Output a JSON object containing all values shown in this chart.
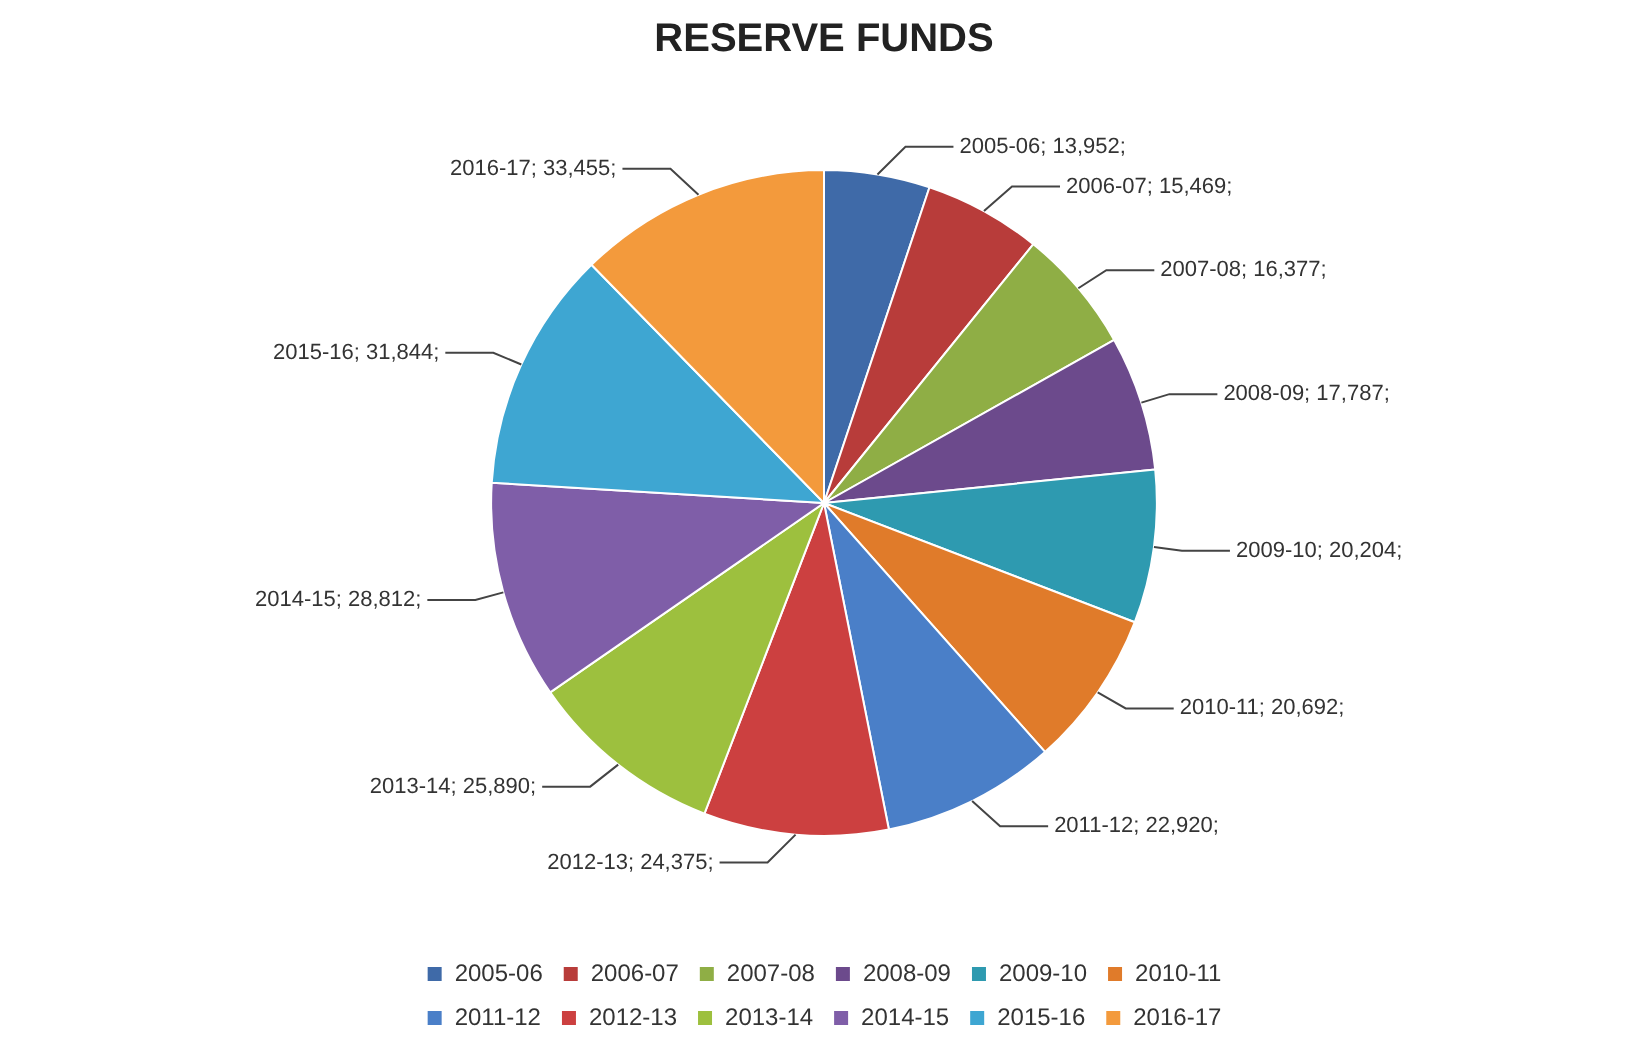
{
  "chart_data": {
    "type": "pie",
    "title": "RESERVE FUNDS",
    "categories": [
      "2005-06",
      "2006-07",
      "2007-08",
      "2008-09",
      "2009-10",
      "2010-11",
      "2011-12",
      "2012-13",
      "2013-14",
      "2014-15",
      "2015-16",
      "2016-17"
    ],
    "values": [
      13952,
      15469,
      16377,
      17787,
      20204,
      20692,
      22920,
      24375,
      25890,
      28812,
      31844,
      33455
    ],
    "colors": [
      "#3f6aa8",
      "#b83c3a",
      "#8fae45",
      "#6c4a8c",
      "#2e9ab0",
      "#e07b2a",
      "#4a7fc8",
      "#cc4040",
      "#9dc03e",
      "#7f5ea8",
      "#3ea6d2",
      "#f39a3c"
    ],
    "value_labels": [
      "2005-06; 13,952;",
      "2006-07; 15,469;",
      "2007-08; 16,377;",
      "2008-09; 17,787;",
      "2009-10; 20,204;",
      "2010-11; 20,692;",
      "2011-12; 22,920;",
      "2012-13; 24,375;",
      "2013-14; 25,890;",
      "2014-15; 28,812;",
      "2015-16; 31,844;",
      "2016-17; 33,455;"
    ],
    "legend": "bottom"
  }
}
